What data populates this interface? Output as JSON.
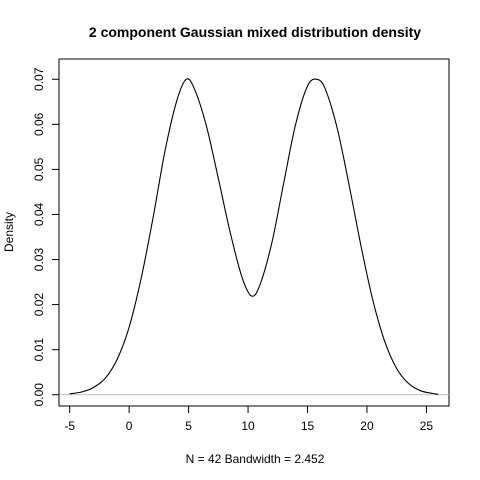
{
  "chart_data": {
    "type": "line",
    "title": "2 component Gaussian mixed distribution density",
    "xlabel": "N = 42   Bandwidth = 2.452",
    "ylabel": "Density",
    "xlim": [
      -5.9,
      26.9
    ],
    "ylim": [
      -0.0025,
      0.0745
    ],
    "x_ticks": [
      -5,
      0,
      5,
      10,
      15,
      20,
      25
    ],
    "y_ticks": [
      0.0,
      0.01,
      0.02,
      0.03,
      0.04,
      0.05,
      0.06,
      0.07
    ],
    "x_tick_labels": [
      "-5",
      "0",
      "5",
      "10",
      "15",
      "20",
      "25"
    ],
    "y_tick_labels": [
      "0.00",
      "0.01",
      "0.02",
      "0.03",
      "0.04",
      "0.05",
      "0.06",
      "0.07"
    ],
    "grid": false,
    "baseline": 0,
    "series": [
      {
        "x": [
          -5.0,
          -4.0,
          -3.0,
          -2.0,
          -1.0,
          0.0,
          1.0,
          2.0,
          3.0,
          4.0,
          4.8,
          5.5,
          6.5,
          7.5,
          8.5,
          9.5,
          10.3,
          11.0,
          12.0,
          13.0,
          14.0,
          15.0,
          15.8,
          16.5,
          17.5,
          18.5,
          19.5,
          20.5,
          21.5,
          22.5,
          23.5,
          24.5,
          25.5,
          26.0
        ],
        "y": [
          0.0002,
          0.0006,
          0.0016,
          0.0037,
          0.0079,
          0.015,
          0.0257,
          0.0391,
          0.0539,
          0.0652,
          0.07,
          0.0678,
          0.0596,
          0.048,
          0.036,
          0.026,
          0.0219,
          0.0244,
          0.0337,
          0.047,
          0.06,
          0.0685,
          0.07,
          0.0678,
          0.0591,
          0.0465,
          0.033,
          0.0209,
          0.0118,
          0.0058,
          0.0025,
          0.0009,
          0.0003,
          0.0001
        ]
      }
    ]
  }
}
